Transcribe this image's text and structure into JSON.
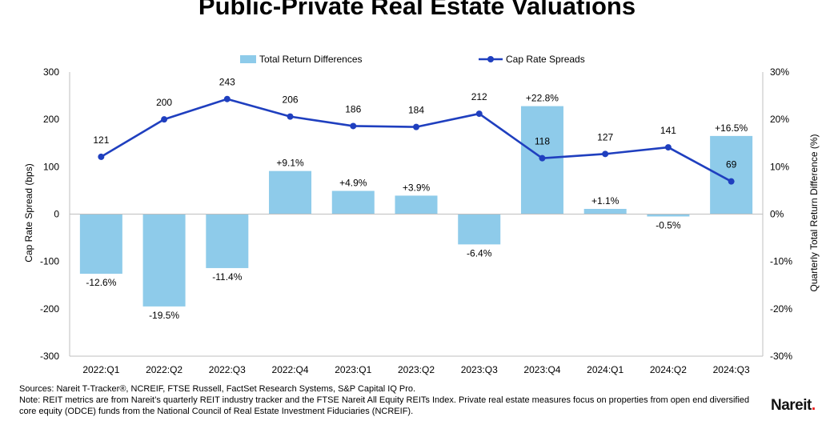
{
  "chart_data": {
    "type": "bar+line",
    "title": "Public-Private Real Estate Valuations",
    "categories": [
      "2022:Q1",
      "2022:Q2",
      "2022:Q3",
      "2022:Q4",
      "2023:Q1",
      "2023:Q2",
      "2023:Q3",
      "2023:Q4",
      "2024:Q1",
      "2024:Q2",
      "2024:Q3"
    ],
    "series": [
      {
        "name": "Total Return Differences",
        "type": "bar",
        "axis": "right",
        "color": "#8ecbea",
        "values": [
          -12.6,
          -19.5,
          -11.4,
          9.1,
          4.9,
          3.9,
          -6.4,
          22.8,
          1.1,
          -0.5,
          16.5
        ],
        "labels": [
          "-12.6%",
          "-19.5%",
          "-11.4%",
          "+9.1%",
          "+4.9%",
          "+3.9%",
          "-6.4%",
          "+22.8%",
          "+1.1%",
          "-0.5%",
          "+16.5%"
        ]
      },
      {
        "name": "Cap Rate Spreads",
        "type": "line",
        "axis": "left",
        "color": "#1f3fbf",
        "values": [
          121,
          200,
          243,
          206,
          186,
          184,
          212,
          118,
          127,
          141,
          69
        ],
        "labels": [
          "121",
          "200",
          "243",
          "206",
          "186",
          "184",
          "212",
          "118",
          "127",
          "141",
          "69"
        ]
      }
    ],
    "ylabel": "Cap Rate Spread (bps)",
    "ylim": [
      -300,
      300
    ],
    "yticks": [
      -300,
      -200,
      -100,
      0,
      100,
      200,
      300
    ],
    "ytick_labels": [
      "-300",
      "-200",
      "-100",
      "0",
      "100",
      "200",
      "300"
    ],
    "y2label": "Quarterly Total Return Difference (%)",
    "y2lim": [
      -30,
      30
    ],
    "y2ticks": [
      -30,
      -20,
      -10,
      0,
      10,
      20,
      30
    ],
    "y2tick_labels": [
      "-30%",
      "-20%",
      "-10%",
      "0%",
      "10%",
      "20%",
      "30%"
    ],
    "legend_position": "top-center"
  },
  "footer": {
    "sources": "Sources: Nareit T-Tracker®,  NCREIF, FTSE Russell, FactSet Research Systems, S&P Capital IQ Pro.",
    "note": "Note: REIT metrics are from Nareit’s quarterly REIT industry tracker and the FTSE Nareit All Equity REITs Index. Private real estate measures focus on properties from open end diversified core equity (ODCE) funds from the National Council of Real Estate Investment Fiduciaries (NCREIF).",
    "logo_text": "Nareit"
  }
}
